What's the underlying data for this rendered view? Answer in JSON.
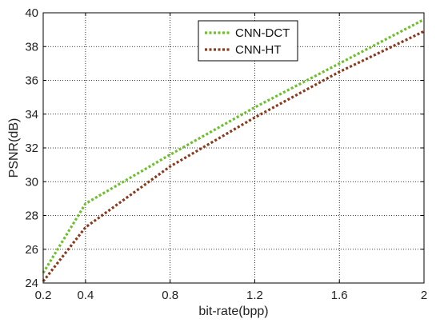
{
  "chart_data": {
    "type": "line",
    "title": "",
    "xlabel": "bit-rate(bpp)",
    "ylabel": "PSNR(dB)",
    "xlim": [
      0.2,
      2
    ],
    "ylim": [
      24,
      40
    ],
    "xticks": [
      0.2,
      0.4,
      0.8,
      1.2,
      1.6,
      2
    ],
    "xtick_labels": [
      "0.2",
      "0.4",
      "0.8",
      "1.2",
      "1.6",
      "2"
    ],
    "yticks": [
      24,
      26,
      28,
      30,
      32,
      34,
      36,
      38,
      40
    ],
    "ytick_labels": [
      "24",
      "26",
      "28",
      "30",
      "32",
      "34",
      "36",
      "38",
      "40"
    ],
    "grid": true,
    "legend_position": "top-right",
    "series": [
      {
        "name": "CNN-DCT",
        "color": "#6cc02a",
        "x": [
          0.2,
          0.4,
          0.8,
          1.2,
          1.6,
          2.0
        ],
        "y": [
          24.6,
          28.7,
          31.6,
          34.4,
          37.0,
          39.6
        ]
      },
      {
        "name": "CNN-HT",
        "color": "#8b3a1e",
        "x": [
          0.2,
          0.4,
          0.8,
          1.2,
          1.6,
          2.0
        ],
        "y": [
          24.1,
          27.3,
          30.9,
          33.8,
          36.5,
          38.9
        ]
      }
    ]
  }
}
